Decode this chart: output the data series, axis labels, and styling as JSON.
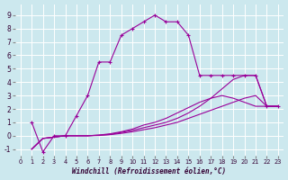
{
  "xlabel": "Windchill (Refroidissement éolien,°C)",
  "background_color": "#cce8ee",
  "grid_color": "#ffffff",
  "line_color": "#990099",
  "xlim": [
    -0.5,
    23.5
  ],
  "ylim": [
    -1.5,
    9.8
  ],
  "xticks": [
    0,
    1,
    2,
    3,
    4,
    5,
    6,
    7,
    8,
    9,
    10,
    11,
    12,
    13,
    14,
    15,
    16,
    17,
    18,
    19,
    20,
    21,
    22,
    23
  ],
  "yticks": [
    -1,
    0,
    1,
    2,
    3,
    4,
    5,
    6,
    7,
    8,
    9
  ],
  "line1_x": [
    1,
    2,
    3,
    4,
    5,
    6,
    7,
    8,
    9,
    10,
    11,
    12,
    13,
    14,
    15,
    16,
    17,
    18,
    19,
    20,
    21,
    22,
    23
  ],
  "line1_y": [
    1.0,
    -1.2,
    0.0,
    0.0,
    1.5,
    3.0,
    5.5,
    5.5,
    7.5,
    8.0,
    8.5,
    9.0,
    8.5,
    8.5,
    7.5,
    4.5,
    4.5,
    4.5,
    4.5,
    4.5,
    4.5,
    2.2,
    2.2
  ],
  "line2_x": [
    1,
    2,
    3,
    4,
    5,
    6,
    7,
    8,
    9,
    10,
    11,
    12,
    13,
    14,
    15,
    16,
    17,
    18,
    19,
    20,
    21,
    22,
    23
  ],
  "line2_y": [
    -1.0,
    -0.2,
    -0.1,
    0.0,
    0.0,
    0.0,
    0.05,
    0.15,
    0.3,
    0.5,
    0.8,
    1.0,
    1.3,
    1.7,
    2.1,
    2.5,
    2.8,
    3.0,
    2.8,
    2.5,
    2.2,
    2.2,
    2.2
  ],
  "line3_x": [
    1,
    2,
    3,
    4,
    5,
    6,
    7,
    8,
    9,
    10,
    11,
    12,
    13,
    14,
    15,
    16,
    17,
    18,
    19,
    20,
    21,
    22,
    23
  ],
  "line3_y": [
    -1.0,
    -0.2,
    -0.1,
    0.0,
    0.0,
    0.0,
    0.05,
    0.1,
    0.25,
    0.4,
    0.6,
    0.8,
    1.0,
    1.3,
    1.7,
    2.2,
    2.8,
    3.5,
    4.2,
    4.5,
    4.5,
    2.2,
    2.2
  ],
  "line4_x": [
    1,
    2,
    3,
    4,
    5,
    6,
    7,
    8,
    9,
    10,
    11,
    12,
    13,
    14,
    15,
    16,
    17,
    18,
    19,
    20,
    21,
    22,
    23
  ],
  "line4_y": [
    -1.0,
    -0.2,
    -0.1,
    0.0,
    0.0,
    0.0,
    0.02,
    0.08,
    0.18,
    0.3,
    0.45,
    0.6,
    0.8,
    1.0,
    1.3,
    1.6,
    1.9,
    2.2,
    2.5,
    2.8,
    3.0,
    2.2,
    2.2
  ]
}
